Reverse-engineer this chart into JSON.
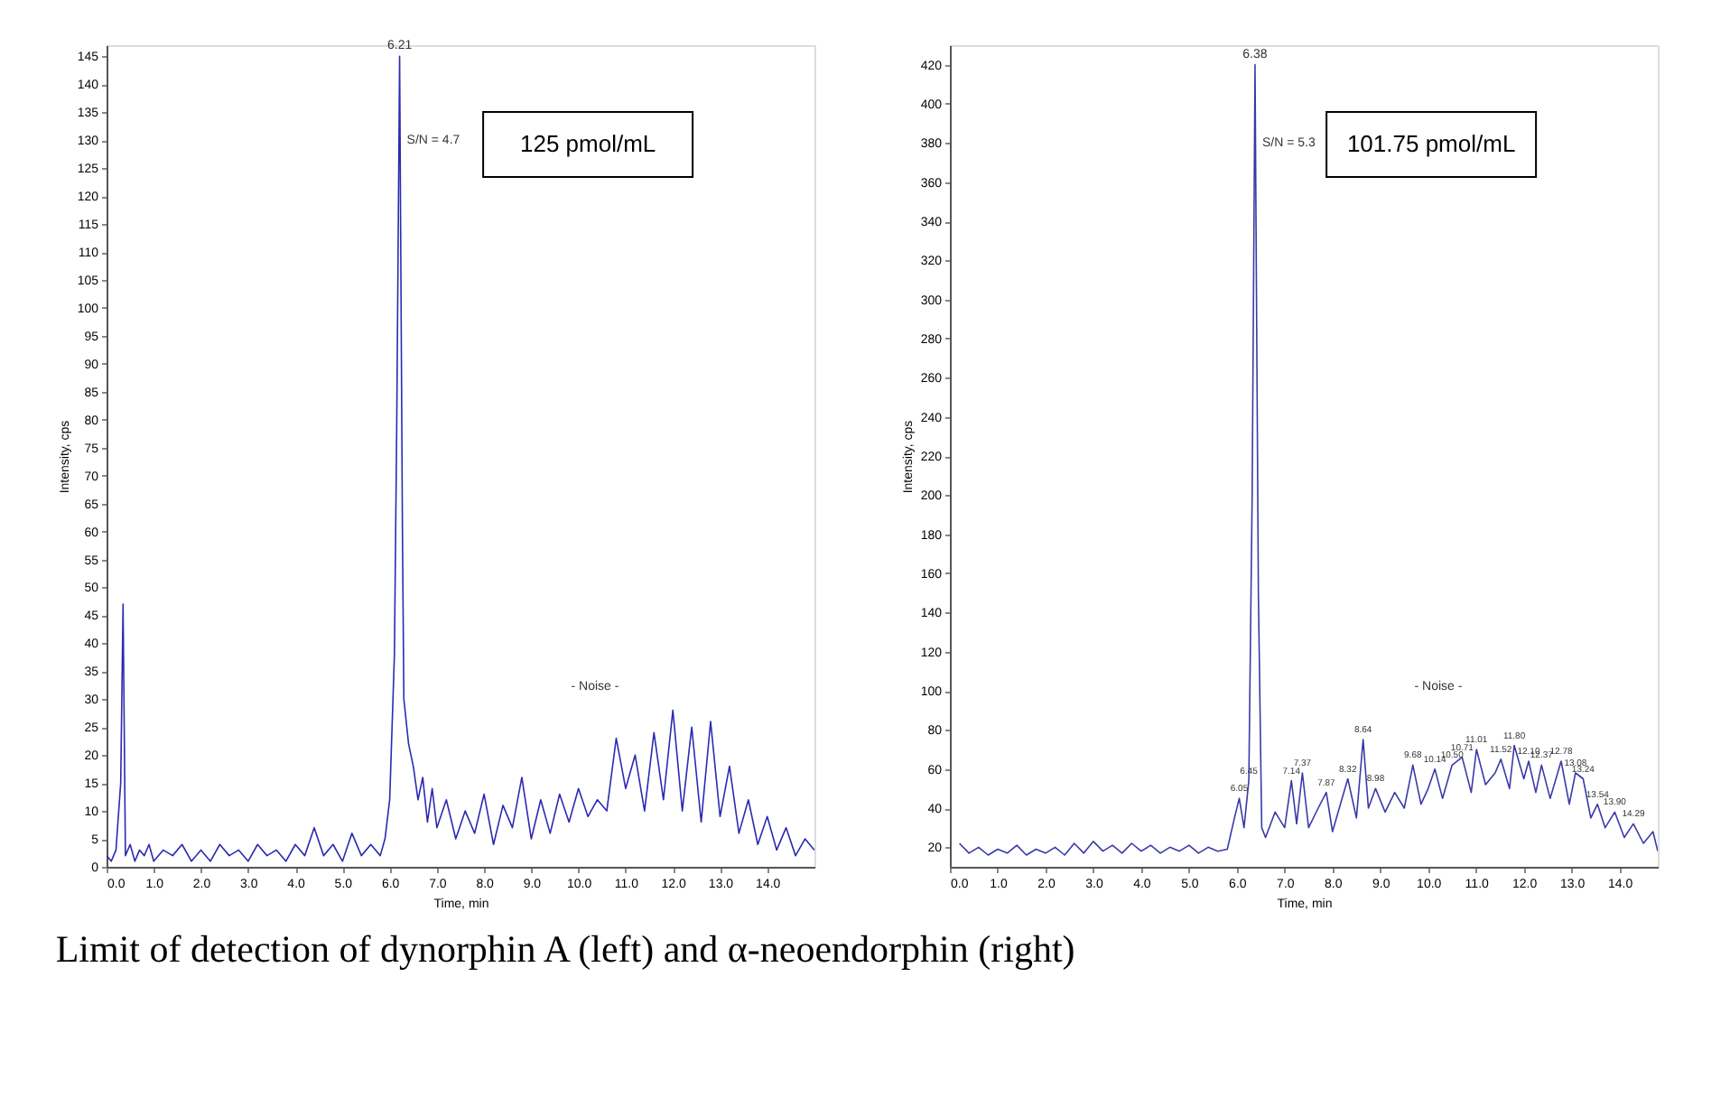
{
  "chart_data": [
    {
      "type": "line",
      "title": "Limit of detection of dynorphin A (left) and α-neoendorphin (right)",
      "xlabel": "Time, min",
      "ylabel": "Intensity, cps",
      "grid": false,
      "marker": "none",
      "line_style": "solid",
      "xlim": [
        0,
        15
      ],
      "ylim": [
        0,
        147
      ],
      "xticks": [
        {
          "value": 0,
          "label": "0.0"
        },
        {
          "value": 1,
          "label": "1.0"
        },
        {
          "value": 2,
          "label": "2.0"
        },
        {
          "value": 3,
          "label": "3.0"
        },
        {
          "value": 4,
          "label": "4.0"
        },
        {
          "value": 5,
          "label": "5.0"
        },
        {
          "value": 6,
          "label": "6.0"
        },
        {
          "value": 7,
          "label": "7.0"
        },
        {
          "value": 8,
          "label": "8.0"
        },
        {
          "value": 9,
          "label": "9.0"
        },
        {
          "value": 10,
          "label": "10.0"
        },
        {
          "value": 11,
          "label": "11.0"
        },
        {
          "value": 12,
          "label": "12.0"
        },
        {
          "value": 13,
          "label": "13.0"
        },
        {
          "value": 14,
          "label": "14.0"
        }
      ],
      "yticks": [
        0,
        5,
        10,
        15,
        20,
        25,
        30,
        35,
        40,
        45,
        50,
        55,
        60,
        65,
        70,
        75,
        80,
        85,
        90,
        95,
        100,
        105,
        110,
        115,
        120,
        125,
        130,
        135,
        140,
        145
      ],
      "series": [
        {
          "color": "#2b2bb0",
          "x": [
            0.0,
            0.1,
            0.2,
            0.3,
            0.35,
            0.4,
            0.5,
            0.6,
            0.7,
            0.8,
            0.9,
            1.0,
            1.2,
            1.4,
            1.6,
            1.8,
            2.0,
            2.2,
            2.4,
            2.6,
            2.8,
            3.0,
            3.2,
            3.4,
            3.6,
            3.8,
            4.0,
            4.2,
            4.4,
            4.6,
            4.8,
            5.0,
            5.2,
            5.4,
            5.6,
            5.8,
            5.9,
            6.0,
            6.1,
            6.15,
            6.21,
            6.27,
            6.3,
            6.4,
            6.5,
            6.6,
            6.7,
            6.8,
            6.9,
            7.0,
            7.2,
            7.4,
            7.6,
            7.8,
            8.0,
            8.2,
            8.4,
            8.6,
            8.8,
            9.0,
            9.2,
            9.4,
            9.6,
            9.8,
            10.0,
            10.2,
            10.4,
            10.6,
            10.8,
            11.0,
            11.2,
            11.4,
            11.6,
            11.8,
            12.0,
            12.2,
            12.4,
            12.6,
            12.8,
            13.0,
            13.2,
            13.4,
            13.6,
            13.8,
            14.0,
            14.2,
            14.4,
            14.6,
            14.8,
            15.0
          ],
          "values": [
            2,
            1,
            3,
            15,
            47,
            2,
            4,
            1,
            3,
            2,
            4,
            1,
            3,
            2,
            4,
            1,
            3,
            1,
            4,
            2,
            3,
            1,
            4,
            2,
            3,
            1,
            4,
            2,
            7,
            2,
            4,
            1,
            6,
            2,
            4,
            2,
            5,
            12,
            38,
            80,
            145,
            60,
            30,
            22,
            18,
            12,
            16,
            8,
            14,
            7,
            12,
            5,
            10,
            6,
            13,
            4,
            11,
            7,
            16,
            5,
            12,
            6,
            13,
            8,
            14,
            9,
            12,
            10,
            23,
            14,
            20,
            10,
            24,
            12,
            28,
            10,
            25,
            8,
            26,
            9,
            18,
            6,
            12,
            4,
            9,
            3,
            7,
            2,
            5,
            3
          ]
        }
      ],
      "annotations": [
        {
          "text": "6.21",
          "x": 6.21,
          "y": 145
        },
        {
          "text": "S/N = 4.7",
          "x": 6.21,
          "y": 130
        },
        "125 pmol/mL",
        "- Noise -"
      ]
    },
    {
      "type": "line",
      "xlabel": "Time, min",
      "ylabel": "Intensity, cps",
      "grid": false,
      "marker": "none",
      "line_style": "solid",
      "xlim": [
        0,
        14.8
      ],
      "ylim": [
        10,
        430
      ],
      "xticks": [
        {
          "value": 0,
          "label": "0.0"
        },
        {
          "value": 1,
          "label": "1.0"
        },
        {
          "value": 2,
          "label": "2.0"
        },
        {
          "value": 3,
          "label": "3.0"
        },
        {
          "value": 4,
          "label": "4.0"
        },
        {
          "value": 5,
          "label": "5.0"
        },
        {
          "value": 6,
          "label": "6.0"
        },
        {
          "value": 7,
          "label": "7.0"
        },
        {
          "value": 8,
          "label": "8.0"
        },
        {
          "value": 9,
          "label": "9.0"
        },
        {
          "value": 10,
          "label": "10.0"
        },
        {
          "value": 11,
          "label": "11.0"
        },
        {
          "value": 12,
          "label": "12.0"
        },
        {
          "value": 13,
          "label": "13.0"
        },
        {
          "value": 14,
          "label": "14.0"
        }
      ],
      "yticks": [
        20,
        40,
        60,
        80,
        100,
        120,
        140,
        160,
        180,
        200,
        220,
        240,
        260,
        280,
        300,
        320,
        340,
        360,
        380,
        400,
        420
      ],
      "series": [
        {
          "color": "#3a3aa8",
          "x": [
            0.2,
            0.4,
            0.6,
            0.8,
            1.0,
            1.2,
            1.4,
            1.6,
            1.8,
            2.0,
            2.2,
            2.4,
            2.6,
            2.8,
            3.0,
            3.2,
            3.4,
            3.6,
            3.8,
            4.0,
            4.2,
            4.4,
            4.6,
            4.8,
            5.0,
            5.2,
            5.4,
            5.6,
            5.8,
            5.95,
            6.05,
            6.15,
            6.25,
            6.32,
            6.38,
            6.45,
            6.52,
            6.6,
            6.8,
            7.0,
            7.14,
            7.25,
            7.37,
            7.5,
            7.7,
            7.87,
            8.0,
            8.2,
            8.32,
            8.5,
            8.64,
            8.75,
            8.9,
            9.1,
            9.3,
            9.5,
            9.68,
            9.85,
            10.0,
            10.14,
            10.3,
            10.5,
            10.71,
            10.9,
            11.01,
            11.2,
            11.4,
            11.52,
            11.7,
            11.8,
            12.0,
            12.1,
            12.25,
            12.37,
            12.55,
            12.78,
            12.95,
            13.08,
            13.24,
            13.4,
            13.54,
            13.7,
            13.9,
            14.1,
            14.29,
            14.5,
            14.7,
            14.8
          ],
          "values": [
            22,
            17,
            20,
            16,
            19,
            17,
            21,
            16,
            19,
            17,
            20,
            16,
            22,
            17,
            23,
            18,
            21,
            17,
            22,
            18,
            21,
            17,
            20,
            18,
            21,
            17,
            20,
            18,
            19,
            35,
            45,
            30,
            54,
            200,
            420,
            150,
            30,
            25,
            38,
            30,
            54,
            32,
            58,
            30,
            40,
            48,
            28,
            45,
            55,
            35,
            75,
            40,
            50,
            38,
            48,
            40,
            62,
            42,
            50,
            60,
            45,
            62,
            66,
            48,
            70,
            52,
            58,
            65,
            50,
            72,
            55,
            64,
            48,
            62,
            45,
            64,
            42,
            58,
            55,
            35,
            42,
            30,
            38,
            25,
            32,
            22,
            28,
            18
          ]
        }
      ],
      "annotations": [
        {
          "text": "6.38",
          "x": 6.38,
          "y": 420
        },
        {
          "text": "S/N = 5.3",
          "x": 6.38,
          "y": 380
        },
        {
          "text": "6.05",
          "x": 6.05,
          "y": 45
        },
        {
          "text": "6.45",
          "x": 6.25,
          "y": 54
        },
        {
          "text": "7.14",
          "x": 7.14,
          "y": 54
        },
        {
          "text": "7.37",
          "x": 7.37,
          "y": 58
        },
        {
          "text": "7.87",
          "x": 7.87,
          "y": 48
        },
        {
          "text": "8.32",
          "x": 8.32,
          "y": 55
        },
        {
          "text": "8.64",
          "x": 8.64,
          "y": 75
        },
        {
          "text": "8.98",
          "x": 8.9,
          "y": 50
        },
        {
          "text": "9.68",
          "x": 9.68,
          "y": 62
        },
        {
          "text": "10.14",
          "x": 10.14,
          "y": 60
        },
        {
          "text": "10.50",
          "x": 10.5,
          "y": 62
        },
        {
          "text": "10.71",
          "x": 10.71,
          "y": 66
        },
        {
          "text": "11.01",
          "x": 11.01,
          "y": 70
        },
        {
          "text": "11.52",
          "x": 11.52,
          "y": 65
        },
        {
          "text": "11.80",
          "x": 11.8,
          "y": 72
        },
        {
          "text": "12.10",
          "x": 12.1,
          "y": 64
        },
        {
          "text": "12.37",
          "x": 12.37,
          "y": 62
        },
        {
          "text": "12.78",
          "x": 12.78,
          "y": 64
        },
        {
          "text": "13.08",
          "x": 13.08,
          "y": 58
        },
        {
          "text": "13.24",
          "x": 13.24,
          "y": 55
        },
        {
          "text": "13.54",
          "x": 13.54,
          "y": 42
        },
        {
          "text": "13.90",
          "x": 13.9,
          "y": 38
        },
        {
          "text": "14.29",
          "x": 14.29,
          "y": 32
        },
        "101.75 pmol/mL",
        "- Noise -"
      ]
    }
  ]
}
